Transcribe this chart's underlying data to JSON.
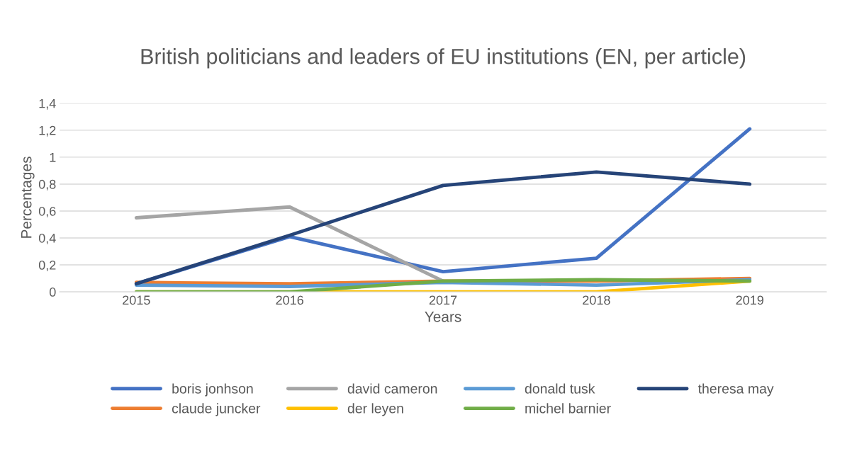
{
  "chart_data": {
    "type": "line",
    "title": "British politicians and leaders of EU institutions (EN, per article)",
    "xlabel": "Years",
    "ylabel": "Percentages",
    "categories": [
      "2015",
      "2016",
      "2017",
      "2018",
      "2019"
    ],
    "series": [
      {
        "name": "boris jonhson",
        "color": "#4472c4",
        "values": [
          0.06,
          0.41,
          0.15,
          0.25,
          1.21
        ]
      },
      {
        "name": "claude juncker",
        "color": "#ed7d31",
        "values": [
          0.07,
          0.06,
          0.08,
          0.08,
          0.1
        ]
      },
      {
        "name": "david cameron",
        "color": "#a5a5a5",
        "values": [
          0.55,
          0.63,
          0.08,
          null,
          null
        ]
      },
      {
        "name": "der leyen",
        "color": "#ffc000",
        "values": [
          0,
          0,
          0,
          0,
          0.08
        ]
      },
      {
        "name": "donald tusk",
        "color": "#5b9bd5",
        "values": [
          0.05,
          0.04,
          0.07,
          0.05,
          0.09
        ]
      },
      {
        "name": "michel barnier",
        "color": "#70ad47",
        "values": [
          0,
          0,
          0.08,
          0.09,
          0.08
        ]
      },
      {
        "name": "theresa may",
        "color": "#264478",
        "values": [
          0.06,
          0.42,
          0.79,
          0.89,
          0.8
        ]
      }
    ],
    "ylim": [
      0,
      1.4
    ],
    "yticks": [
      0,
      {
        "value": 0.2,
        "label": "0,2"
      },
      {
        "value": 0.4,
        "label": "0,4"
      },
      {
        "value": 0.6,
        "label": "0,6"
      },
      {
        "value": 0.8,
        "label": "0,8"
      },
      1,
      {
        "value": 1.2,
        "label": "1,2"
      },
      {
        "value": 1.4,
        "label": "1,4"
      }
    ],
    "grid": "y",
    "legend": "bottom",
    "marker": "none",
    "line_style": "solid"
  }
}
